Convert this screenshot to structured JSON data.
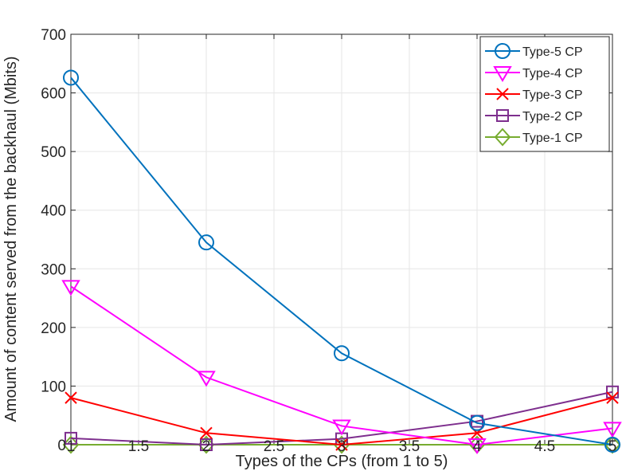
{
  "chart_data": {
    "type": "line",
    "title": "",
    "xlabel": "Types of the CPs (from 1 to 5)",
    "ylabel": "Amount of content served from the backhaul (Mbits)",
    "x": [
      1,
      2,
      3,
      4,
      5
    ],
    "xlim": [
      1,
      5
    ],
    "ylim": [
      0,
      700
    ],
    "xticks": [
      1,
      1.5,
      2,
      2.5,
      3,
      3.5,
      4,
      4.5,
      5
    ],
    "xtick_labels": [
      "1",
      "1.5",
      "2",
      "2.5",
      "3",
      "3.5",
      "4",
      "4.5",
      "5"
    ],
    "yticks": [
      0,
      100,
      200,
      300,
      400,
      500,
      600,
      700
    ],
    "ytick_labels": [
      "0",
      "100",
      "200",
      "300",
      "400",
      "500",
      "600",
      "700"
    ],
    "grid": true,
    "legend_position": "top-right",
    "series": [
      {
        "name": "Type-5 CP",
        "color": "#0072BD",
        "marker": "circle",
        "values": [
          626,
          345,
          156,
          37,
          0
        ]
      },
      {
        "name": "Type-4 CP",
        "color": "#FF00FF",
        "marker": "triangle-down",
        "values": [
          270,
          115,
          32,
          0,
          28
        ]
      },
      {
        "name": "Type-3 CP",
        "color": "#FF0000",
        "marker": "x",
        "values": [
          80,
          20,
          0,
          20,
          80
        ]
      },
      {
        "name": "Type-2 CP",
        "color": "#7E2F8E",
        "marker": "square",
        "values": [
          11,
          0,
          10,
          40,
          90
        ]
      },
      {
        "name": "Type-1 CP",
        "color": "#77AC30",
        "marker": "diamond",
        "values": [
          0,
          0,
          0,
          0,
          0
        ]
      }
    ]
  }
}
